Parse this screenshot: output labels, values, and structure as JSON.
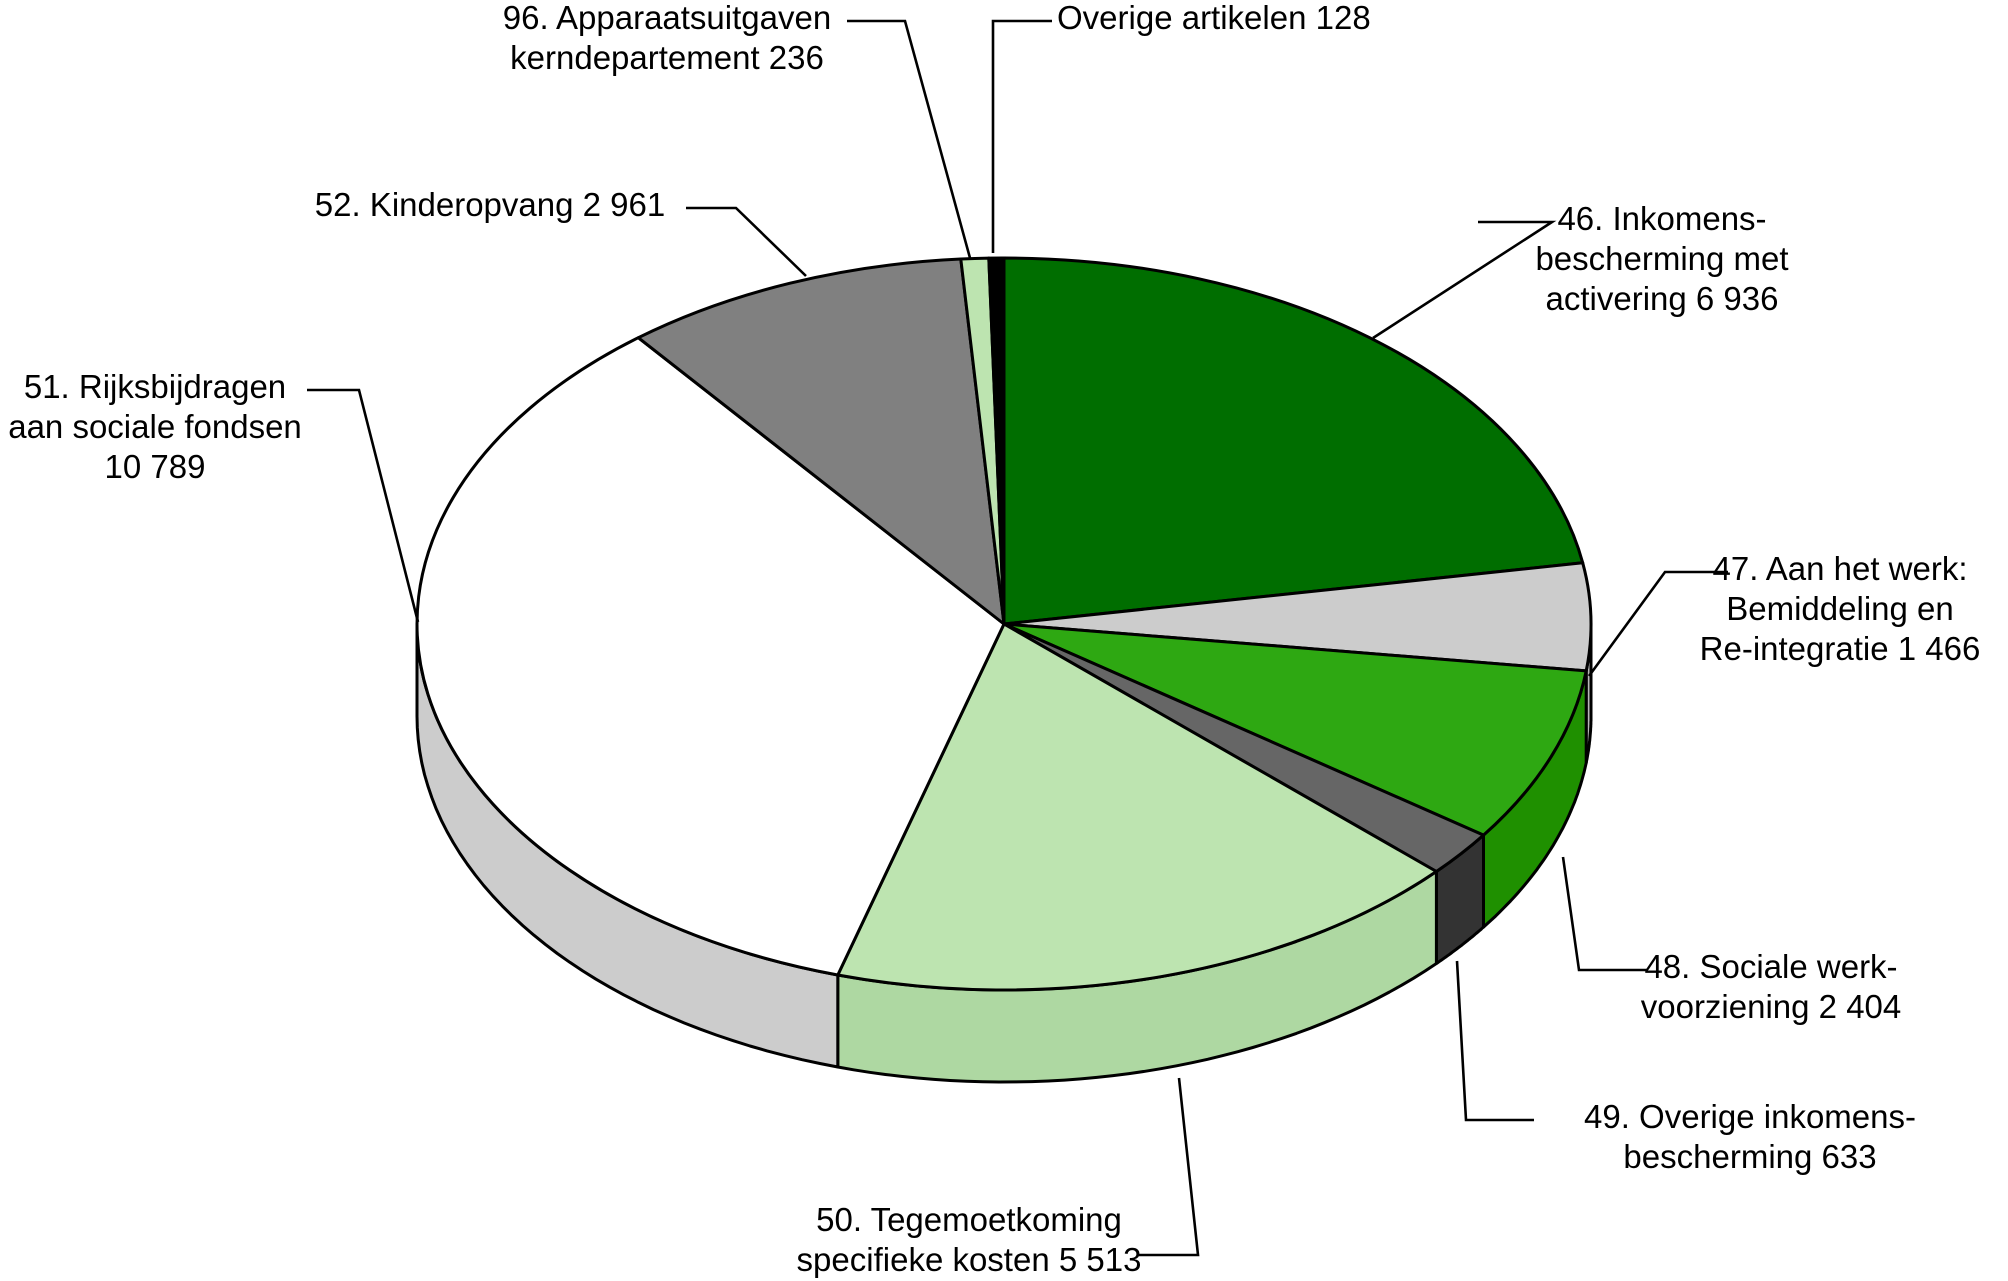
{
  "chart_data": {
    "type": "pie",
    "title": "",
    "unit": "",
    "three_d": true,
    "legend": "none (slices labelled directly with leader lines)",
    "slices": [
      {
        "label_lines": [
          "46. Inkomens-",
          "bescherming met",
          "activering 6 936"
        ],
        "value": 6936,
        "color_top": "#006e00",
        "color_side": "#005c00"
      },
      {
        "label_lines": [
          "47. Aan het werk:",
          "Bemiddeling en",
          "Re-integratie 1 466"
        ],
        "value": 1466,
        "color_top": "#cccccc",
        "color_side": "#b8b8b8"
      },
      {
        "label_lines": [
          "48. Sociale werk-",
          "voorziening 2 404"
        ],
        "value": 2404,
        "color_top": "#2ea812",
        "color_side": "#1f9000"
      },
      {
        "label_lines": [
          "49. Overige inkomens-",
          "bescherming 633"
        ],
        "value": 633,
        "color_top": "#666666",
        "color_side": "#333333"
      },
      {
        "label_lines": [
          "50. Tegemoetkoming",
          "specifieke kosten 5 513"
        ],
        "value": 5513,
        "color_top": "#bde4b0",
        "color_side": "#aed8a2"
      },
      {
        "label_lines": [
          "51. Rijksbijdragen",
          "aan sociale fondsen",
          "10 789"
        ],
        "value": 10789,
        "color_top": "#ffffff",
        "color_side": "#cccccc"
      },
      {
        "label_lines": [
          "52. Kinderopvang 2 961"
        ],
        "value": 2961,
        "color_top": "#808080",
        "color_side": "#6a6a6a"
      },
      {
        "label_lines": [
          "96. Apparaatsuitgaven",
          "kerndepartement 236"
        ],
        "value": 236,
        "color_top": "#bde4b0",
        "color_side": "#aed8a2"
      },
      {
        "label_lines": [
          "Overige artikelen 128"
        ],
        "value": 128,
        "color_top": "#000000",
        "color_side": "#000000"
      }
    ]
  }
}
